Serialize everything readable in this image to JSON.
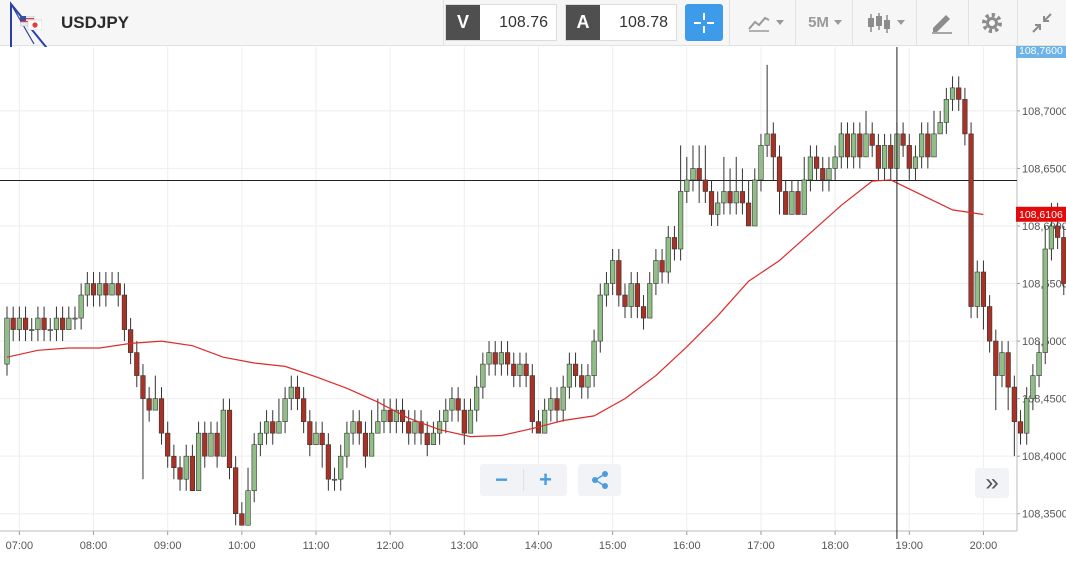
{
  "toolbar": {
    "symbol": "USDJPY",
    "bid_label": "V",
    "bid_price": "108.76",
    "ask_label": "A",
    "ask_price": "108.78",
    "timeframe": "5M",
    "icons": {
      "logo": "platform-logo-icon",
      "flag": "currency-flag-icon",
      "crosshair": "crosshair-icon",
      "chart_type": "line-chart-icon",
      "candles": "candlestick-icon",
      "draw": "pencil-ruler-icon",
      "settings": "gear-icon",
      "collapse": "collapse-arrows-icon"
    }
  },
  "controls": {
    "zoom_out_label": "−",
    "zoom_in_label": "+",
    "share_icon": "share-icon",
    "scroll_end_label": "»"
  },
  "colors": {
    "accent": "#3d9be9",
    "bull": "#8fbf86",
    "bear": "#a93226",
    "ma_line": "#dd2a2a",
    "last_price_tag": "#e20a0a",
    "top_price_tag": "#6db3e8"
  },
  "chart_data": {
    "type": "candlestick",
    "interval": "5M",
    "y_tick_labels": [
      "108,7000",
      "108,6500",
      "108,6000",
      "108,5500",
      "108,5000",
      "108,4500",
      "108,4000",
      "108,3500"
    ],
    "x_tick_labels": [
      "07:00",
      "08:00",
      "09:00",
      "10:00",
      "11:00",
      "12:00",
      "13:00",
      "14:00",
      "15:00",
      "16:00",
      "17:00",
      "18:00",
      "19:00",
      "20:00"
    ],
    "ylim": [
      108.335,
      108.7555
    ],
    "grid": true,
    "price_tags": [
      {
        "label": "108,7600",
        "value": 108.76,
        "role": "top"
      },
      {
        "label": "108,6106",
        "value": 108.6106,
        "role": "last"
      }
    ],
    "crosshair": {
      "time_index": 144,
      "price": 108.6395
    },
    "moving_average": [
      [
        0,
        108.486
      ],
      [
        5,
        108.492
      ],
      [
        10,
        108.494
      ],
      [
        15,
        108.494
      ],
      [
        20,
        108.498
      ],
      [
        25,
        108.5
      ],
      [
        30,
        108.496
      ],
      [
        35,
        108.486
      ],
      [
        40,
        108.481
      ],
      [
        45,
        108.478
      ],
      [
        50,
        108.469
      ],
      [
        55,
        108.459
      ],
      [
        60,
        108.447
      ],
      [
        65,
        108.433
      ],
      [
        70,
        108.423
      ],
      [
        75,
        108.417
      ],
      [
        80,
        108.418
      ],
      [
        85,
        108.424
      ],
      [
        90,
        108.431
      ],
      [
        95,
        108.435
      ],
      [
        100,
        108.45
      ],
      [
        105,
        108.47
      ],
      [
        110,
        108.495
      ],
      [
        115,
        108.522
      ],
      [
        120,
        108.552
      ],
      [
        125,
        108.57
      ],
      [
        130,
        108.594
      ],
      [
        135,
        108.618
      ],
      [
        140,
        108.639
      ],
      [
        143,
        108.64
      ],
      [
        148,
        108.627
      ],
      [
        153,
        108.614
      ],
      [
        158,
        108.61
      ]
    ],
    "candles": [
      [
        108.48,
        108.52,
        108.53,
        108.47
      ],
      [
        108.52,
        108.51,
        108.53,
        108.5
      ],
      [
        108.51,
        108.52,
        108.53,
        108.5
      ],
      [
        108.52,
        108.51,
        108.53,
        108.5
      ],
      [
        108.51,
        108.51,
        108.52,
        108.5
      ],
      [
        108.51,
        108.52,
        108.53,
        108.5
      ],
      [
        108.52,
        108.51,
        108.53,
        108.5
      ],
      [
        108.51,
        108.51,
        108.52,
        108.5
      ],
      [
        108.51,
        108.52,
        108.53,
        108.5
      ],
      [
        108.52,
        108.51,
        108.53,
        108.5
      ],
      [
        108.51,
        108.52,
        108.53,
        108.51
      ],
      [
        108.52,
        108.52,
        108.53,
        108.51
      ],
      [
        108.52,
        108.54,
        108.55,
        108.51
      ],
      [
        108.54,
        108.55,
        108.56,
        108.53
      ],
      [
        108.55,
        108.54,
        108.56,
        108.53
      ],
      [
        108.54,
        108.55,
        108.56,
        108.53
      ],
      [
        108.55,
        108.54,
        108.56,
        108.53
      ],
      [
        108.54,
        108.55,
        108.56,
        108.54
      ],
      [
        108.55,
        108.54,
        108.56,
        108.53
      ],
      [
        108.54,
        108.51,
        108.55,
        108.5
      ],
      [
        108.51,
        108.49,
        108.52,
        108.48
      ],
      [
        108.49,
        108.47,
        108.5,
        108.46
      ],
      [
        108.47,
        108.45,
        108.48,
        108.38
      ],
      [
        108.45,
        108.44,
        108.46,
        108.43
      ],
      [
        108.44,
        108.45,
        108.47,
        108.44
      ],
      [
        108.45,
        108.42,
        108.46,
        108.41
      ],
      [
        108.42,
        108.4,
        108.43,
        108.39
      ],
      [
        108.4,
        108.39,
        108.41,
        108.38
      ],
      [
        108.39,
        108.38,
        108.4,
        108.37
      ],
      [
        108.38,
        108.4,
        108.41,
        108.37
      ],
      [
        108.4,
        108.37,
        108.41,
        108.37
      ],
      [
        108.37,
        108.42,
        108.43,
        108.37
      ],
      [
        108.42,
        108.4,
        108.43,
        108.39
      ],
      [
        108.4,
        108.42,
        108.43,
        108.4
      ],
      [
        108.42,
        108.4,
        108.43,
        108.39
      ],
      [
        108.4,
        108.44,
        108.45,
        108.4
      ],
      [
        108.44,
        108.39,
        108.45,
        108.38
      ],
      [
        108.39,
        108.35,
        108.4,
        108.34
      ],
      [
        108.35,
        108.34,
        108.36,
        108.34
      ],
      [
        108.34,
        108.37,
        108.39,
        108.34
      ],
      [
        108.37,
        108.41,
        108.42,
        108.36
      ],
      [
        108.41,
        108.42,
        108.43,
        108.4
      ],
      [
        108.42,
        108.43,
        108.44,
        108.41
      ],
      [
        108.43,
        108.42,
        108.44,
        108.41
      ],
      [
        108.42,
        108.43,
        108.45,
        108.42
      ],
      [
        108.43,
        108.45,
        108.46,
        108.42
      ],
      [
        108.45,
        108.46,
        108.47,
        108.44
      ],
      [
        108.46,
        108.45,
        108.47,
        108.44
      ],
      [
        108.45,
        108.43,
        108.46,
        108.42
      ],
      [
        108.43,
        108.41,
        108.44,
        108.4
      ],
      [
        108.41,
        108.42,
        108.43,
        108.41
      ],
      [
        108.42,
        108.41,
        108.43,
        108.39
      ],
      [
        108.41,
        108.38,
        108.42,
        108.37
      ],
      [
        108.38,
        108.38,
        108.39,
        108.37
      ],
      [
        108.38,
        108.4,
        108.41,
        108.37
      ],
      [
        108.4,
        108.42,
        108.43,
        108.39
      ],
      [
        108.42,
        108.43,
        108.44,
        108.41
      ],
      [
        108.43,
        108.42,
        108.44,
        108.41
      ],
      [
        108.42,
        108.4,
        108.43,
        108.39
      ],
      [
        108.4,
        108.42,
        108.44,
        108.4
      ],
      [
        108.42,
        108.43,
        108.45,
        108.42
      ],
      [
        108.43,
        108.44,
        108.45,
        108.42
      ],
      [
        108.44,
        108.43,
        108.45,
        108.42
      ],
      [
        108.43,
        108.44,
        108.45,
        108.42
      ],
      [
        108.44,
        108.43,
        108.45,
        108.42
      ],
      [
        108.43,
        108.42,
        108.44,
        108.41
      ],
      [
        108.42,
        108.43,
        108.44,
        108.41
      ],
      [
        108.43,
        108.42,
        108.44,
        108.41
      ],
      [
        108.42,
        108.41,
        108.43,
        108.4
      ],
      [
        108.41,
        108.42,
        108.43,
        108.41
      ],
      [
        108.42,
        108.43,
        108.44,
        108.41
      ],
      [
        108.43,
        108.44,
        108.45,
        108.42
      ],
      [
        108.44,
        108.45,
        108.46,
        108.43
      ],
      [
        108.45,
        108.44,
        108.46,
        108.43
      ],
      [
        108.44,
        108.42,
        108.45,
        108.41
      ],
      [
        108.42,
        108.44,
        108.45,
        108.42
      ],
      [
        108.44,
        108.46,
        108.47,
        108.43
      ],
      [
        108.46,
        108.48,
        108.49,
        108.45
      ],
      [
        108.48,
        108.49,
        108.5,
        108.47
      ],
      [
        108.49,
        108.48,
        108.5,
        108.47
      ],
      [
        108.48,
        108.49,
        108.5,
        108.47
      ],
      [
        108.49,
        108.48,
        108.5,
        108.47
      ],
      [
        108.48,
        108.47,
        108.49,
        108.46
      ],
      [
        108.47,
        108.48,
        108.49,
        108.46
      ],
      [
        108.48,
        108.47,
        108.49,
        108.46
      ],
      [
        108.47,
        108.43,
        108.48,
        108.42
      ],
      [
        108.43,
        108.42,
        108.44,
        108.42
      ],
      [
        108.42,
        108.44,
        108.45,
        108.43
      ],
      [
        108.44,
        108.45,
        108.46,
        108.43
      ],
      [
        108.45,
        108.44,
        108.46,
        108.43
      ],
      [
        108.44,
        108.46,
        108.47,
        108.43
      ],
      [
        108.46,
        108.48,
        108.49,
        108.45
      ],
      [
        108.48,
        108.47,
        108.49,
        108.46
      ],
      [
        108.47,
        108.46,
        108.48,
        108.45
      ],
      [
        108.46,
        108.47,
        108.48,
        108.45
      ],
      [
        108.47,
        108.5,
        108.51,
        108.46
      ],
      [
        108.5,
        108.54,
        108.55,
        108.49
      ],
      [
        108.54,
        108.55,
        108.56,
        108.53
      ],
      [
        108.55,
        108.57,
        108.58,
        108.54
      ],
      [
        108.57,
        108.54,
        108.58,
        108.53
      ],
      [
        108.54,
        108.53,
        108.55,
        108.52
      ],
      [
        108.53,
        108.55,
        108.56,
        108.52
      ],
      [
        108.55,
        108.53,
        108.56,
        108.52
      ],
      [
        108.53,
        108.52,
        108.54,
        108.51
      ],
      [
        108.52,
        108.55,
        108.56,
        108.52
      ],
      [
        108.55,
        108.57,
        108.58,
        108.54
      ],
      [
        108.57,
        108.56,
        108.58,
        108.55
      ],
      [
        108.56,
        108.59,
        108.6,
        108.55
      ],
      [
        108.59,
        108.58,
        108.6,
        108.57
      ],
      [
        108.58,
        108.63,
        108.67,
        108.57
      ],
      [
        108.63,
        108.64,
        108.66,
        108.62
      ],
      [
        108.64,
        108.65,
        108.67,
        108.63
      ],
      [
        108.65,
        108.64,
        108.67,
        108.62
      ],
      [
        108.64,
        108.63,
        108.67,
        108.62
      ],
      [
        108.63,
        108.61,
        108.64,
        108.6
      ],
      [
        108.61,
        108.62,
        108.63,
        108.6
      ],
      [
        108.62,
        108.63,
        108.66,
        108.61
      ],
      [
        108.63,
        108.62,
        108.65,
        108.61
      ],
      [
        108.62,
        108.63,
        108.66,
        108.61
      ],
      [
        108.63,
        108.62,
        108.65,
        108.61
      ],
      [
        108.62,
        108.6,
        108.64,
        108.6
      ],
      [
        108.6,
        108.64,
        108.65,
        108.6
      ],
      [
        108.64,
        108.67,
        108.68,
        108.63
      ],
      [
        108.67,
        108.68,
        108.74,
        108.66
      ],
      [
        108.68,
        108.66,
        108.69,
        108.64
      ],
      [
        108.66,
        108.63,
        108.67,
        108.61
      ],
      [
        108.63,
        108.61,
        108.64,
        108.61
      ],
      [
        108.61,
        108.63,
        108.64,
        108.61
      ],
      [
        108.63,
        108.61,
        108.64,
        108.61
      ],
      [
        108.61,
        108.64,
        108.66,
        108.61
      ],
      [
        108.64,
        108.66,
        108.67,
        108.63
      ],
      [
        108.66,
        108.65,
        108.67,
        108.64
      ],
      [
        108.65,
        108.64,
        108.66,
        108.63
      ],
      [
        108.64,
        108.65,
        108.66,
        108.63
      ],
      [
        108.65,
        108.66,
        108.67,
        108.64
      ],
      [
        108.66,
        108.68,
        108.69,
        108.65
      ],
      [
        108.68,
        108.66,
        108.69,
        108.65
      ],
      [
        108.66,
        108.68,
        108.69,
        108.65
      ],
      [
        108.68,
        108.66,
        108.69,
        108.65
      ],
      [
        108.66,
        108.68,
        108.7,
        108.66
      ],
      [
        108.68,
        108.67,
        108.69,
        108.66
      ],
      [
        108.67,
        108.65,
        108.68,
        108.64
      ],
      [
        108.65,
        108.67,
        108.68,
        108.64
      ],
      [
        108.67,
        108.65,
        108.68,
        108.64
      ],
      [
        108.65,
        108.68,
        108.69,
        108.64
      ],
      [
        108.68,
        108.67,
        108.69,
        108.66
      ],
      [
        108.67,
        108.65,
        108.68,
        108.64
      ],
      [
        108.65,
        108.66,
        108.67,
        108.64
      ],
      [
        108.66,
        108.68,
        108.69,
        108.65
      ],
      [
        108.68,
        108.66,
        108.69,
        108.65
      ],
      [
        108.66,
        108.68,
        108.7,
        108.66
      ],
      [
        108.68,
        108.69,
        108.7,
        108.68
      ],
      [
        108.69,
        108.71,
        108.72,
        108.68
      ],
      [
        108.71,
        108.72,
        108.73,
        108.7
      ],
      [
        108.72,
        108.71,
        108.73,
        108.7
      ],
      [
        108.71,
        108.68,
        108.72,
        108.67
      ],
      [
        108.68,
        108.53,
        108.69,
        108.52
      ],
      [
        108.53,
        108.56,
        108.57,
        108.52
      ],
      [
        108.56,
        108.53,
        108.57,
        108.51
      ],
      [
        108.53,
        108.5,
        108.54,
        108.49
      ],
      [
        108.5,
        108.47,
        108.51,
        108.44
      ],
      [
        108.47,
        108.49,
        108.5,
        108.46
      ],
      [
        108.49,
        108.46,
        108.5,
        108.44
      ],
      [
        108.46,
        108.43,
        108.47,
        108.4
      ],
      [
        108.43,
        108.42,
        108.44,
        108.41
      ],
      [
        108.42,
        108.45,
        108.46,
        108.41
      ],
      [
        108.45,
        108.47,
        108.48,
        108.44
      ],
      [
        108.47,
        108.49,
        108.5,
        108.46
      ],
      [
        108.49,
        108.58,
        108.6,
        108.48
      ],
      [
        108.58,
        108.6,
        108.62,
        108.57
      ],
      [
        108.6,
        108.59,
        108.62,
        108.58
      ],
      [
        108.59,
        108.55,
        108.6,
        108.54
      ],
      [
        108.55,
        108.53,
        108.56,
        108.52
      ],
      [
        108.53,
        108.55,
        108.56,
        108.52
      ],
      [
        108.55,
        108.57,
        108.58,
        108.54
      ],
      [
        108.57,
        108.59,
        108.6,
        108.56
      ]
    ]
  }
}
